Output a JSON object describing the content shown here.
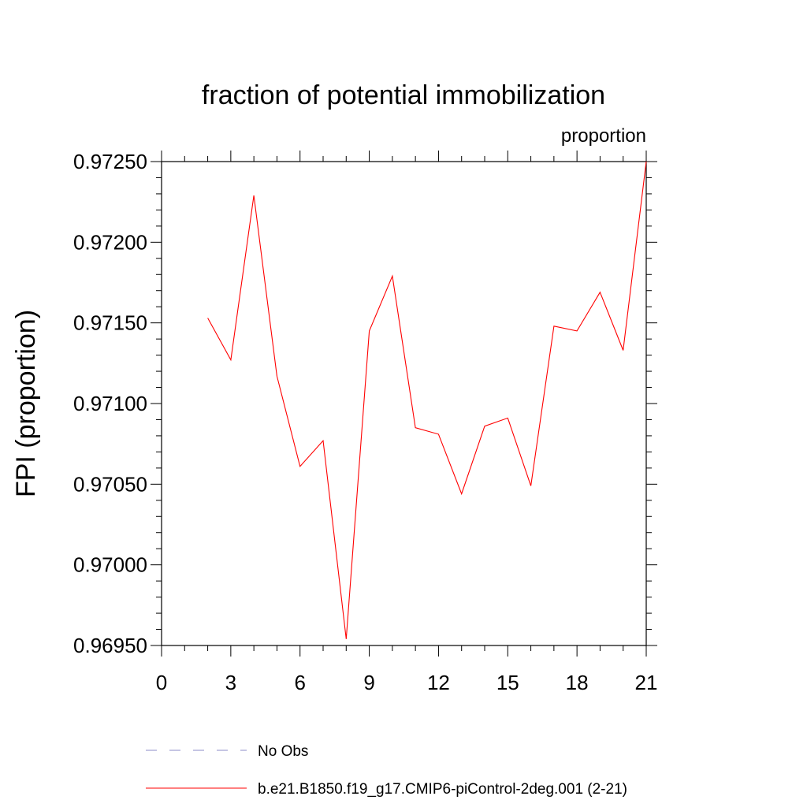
{
  "chart_data": {
    "type": "line",
    "title": "fraction of potential immobilization",
    "subtitle": "proportion",
    "ylabel": "FPI  (proportion)",
    "xlabel": "",
    "xlim": [
      0,
      21
    ],
    "ylim": [
      0.9695,
      0.9725
    ],
    "xticks": [
      0,
      3,
      6,
      9,
      12,
      15,
      18,
      21
    ],
    "xtick_labels": [
      "0",
      "3",
      "6",
      "9",
      "12",
      "15",
      "18",
      "21"
    ],
    "xminor_step": 1,
    "yticks": [
      0.9695,
      0.97,
      0.9705,
      0.971,
      0.9715,
      0.972,
      0.9725
    ],
    "ytick_labels": [
      "0.96950",
      "0.97000",
      "0.97050",
      "0.97100",
      "0.97150",
      "0.97200",
      "0.97250"
    ],
    "yminor_step": 0.0001,
    "grid": false,
    "legend_position": "bottom",
    "series": [
      {
        "name": "b.e21.B1850.f19_g17.CMIP6-piControl-2deg.001 (2-21)",
        "color": "#ff0000",
        "style": "solid",
        "x": [
          2,
          3,
          4,
          5,
          6,
          7,
          8,
          9,
          10,
          11,
          12,
          13,
          14,
          15,
          16,
          17,
          18,
          19,
          20,
          21
        ],
        "y": [
          0.97153,
          0.97127,
          0.97229,
          0.97117,
          0.97061,
          0.97077,
          0.96954,
          0.97145,
          0.97179,
          0.97085,
          0.97081,
          0.97044,
          0.97086,
          0.97091,
          0.97049,
          0.97148,
          0.97145,
          0.97169,
          0.97133,
          0.9725
        ]
      }
    ],
    "legend": [
      {
        "label": "No Obs",
        "color": "#8c8cc8",
        "style": "dashed"
      },
      {
        "label": "b.e21.B1850.f19_g17.CMIP6-piControl-2deg.001 (2-21)",
        "color": "#ff0000",
        "style": "solid"
      }
    ]
  }
}
